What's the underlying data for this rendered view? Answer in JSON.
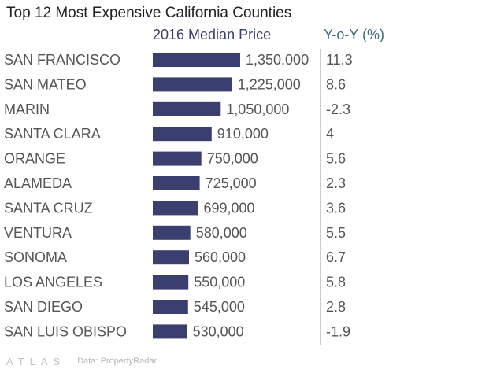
{
  "title": "Top 12 Most Expensive California Counties",
  "footer": {
    "logo": "ATLAS",
    "source": "Data: PropertyRadar"
  },
  "colors": {
    "bar": "#3b3f6f",
    "header_price": "#3b3f6f",
    "header_yoy": "#3f6a7d",
    "label": "#555555",
    "divider": "#999999"
  },
  "chart_data": {
    "type": "bar",
    "orientation": "horizontal",
    "title": "Top 12 Most Expensive California Counties",
    "columns": [
      "2016 Median Price",
      "Y-o-Y (%)"
    ],
    "categories": [
      "SAN FRANCISCO",
      "SAN MATEO",
      "MARIN",
      "SANTA CLARA",
      "ORANGE",
      "ALAMEDA",
      "SANTA CRUZ",
      "VENTURA",
      "SONOMA",
      "LOS ANGELES",
      "SAN DIEGO",
      "SAN LUIS OBISPO"
    ],
    "value_labels": [
      "1,350,000",
      "1,225,000",
      "1,050,000",
      "910,000",
      "750,000",
      "725,000",
      "699,000",
      "580,000",
      "560,000",
      "550,000",
      "545,000",
      "530,000"
    ],
    "values": [
      1350000,
      1225000,
      1050000,
      910000,
      750000,
      725000,
      699000,
      580000,
      560000,
      550000,
      545000,
      530000
    ],
    "yoy": [
      "11.3",
      "8.6",
      "-2.3",
      "4",
      "5.6",
      "2.3",
      "3.6",
      "5.5",
      "6.7",
      "5.8",
      "2.8",
      "-1.9"
    ],
    "xlim": [
      0,
      1350000
    ]
  }
}
